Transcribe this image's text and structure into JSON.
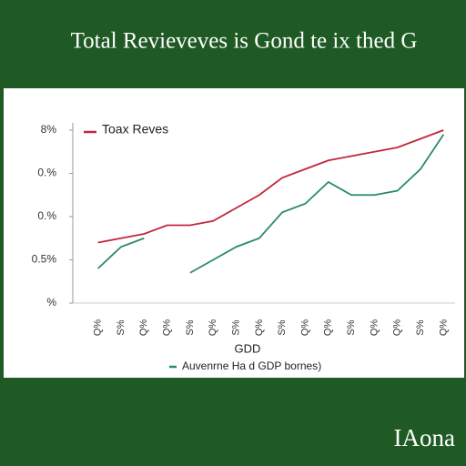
{
  "chart_data": {
    "type": "line",
    "title": "Total Revieveves is Gond te ix thed G",
    "xlabel": "GDD",
    "categories": [
      "Q%",
      "S%",
      "Q%",
      "Q%",
      "S%",
      "Q%",
      "S%",
      "Q%",
      "S%",
      "Q%",
      "Q%",
      "S%",
      "Q%",
      "Q%",
      "S%",
      "Q%"
    ],
    "series": [
      {
        "name": "Toax Reves",
        "color": "#c0283a",
        "values": [
          1.4,
          1.5,
          1.6,
          1.8,
          1.8,
          1.9,
          2.2,
          2.5,
          2.9,
          3.1,
          3.3,
          3.4,
          3.5,
          3.6,
          3.8,
          4.0
        ]
      },
      {
        "name": "Auvenrne Ha d GDP bornes)",
        "color": "#2a8a6e",
        "values": [
          0.8,
          1.3,
          1.5,
          null,
          0.7,
          1.0,
          1.3,
          1.5,
          2.1,
          2.3,
          2.8,
          2.5,
          2.5,
          2.6,
          3.1,
          3.9
        ]
      }
    ],
    "ylim": [
      0,
      4
    ],
    "yticks": [
      {
        "value": 0,
        "label": "%"
      },
      {
        "value": 1,
        "label": "0.5%"
      },
      {
        "value": 2,
        "label": "0.%"
      },
      {
        "value": 3,
        "label": "0.%"
      },
      {
        "value": 4,
        "label": "8%"
      }
    ]
  },
  "footer": {
    "brand": "IAona"
  }
}
